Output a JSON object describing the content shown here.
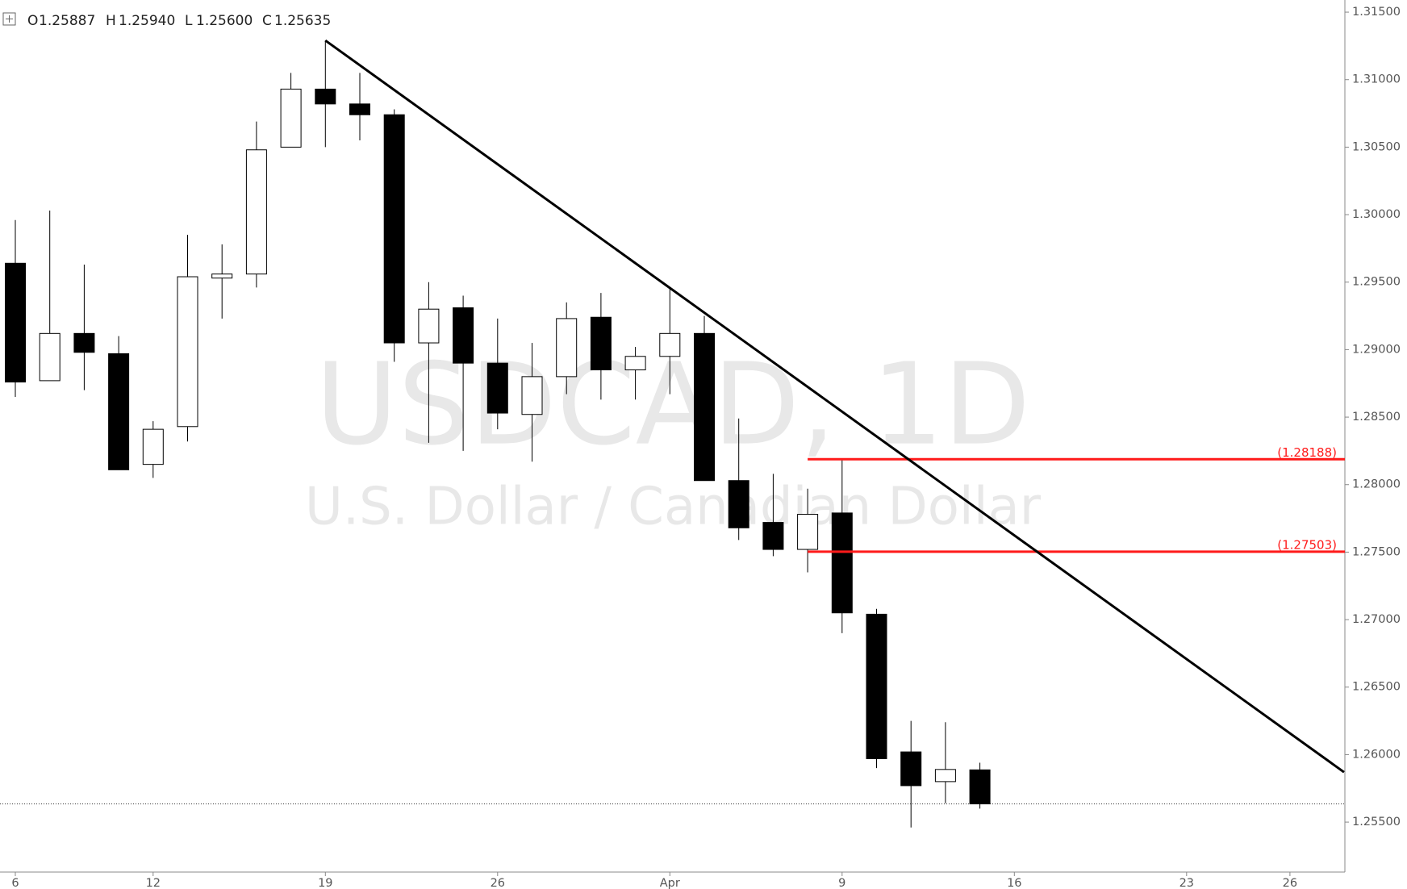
{
  "chart_data": {
    "type": "candlestick",
    "header": {
      "open_label": "O",
      "open": "1.25887",
      "high_label": "H",
      "high": "1.25940",
      "low_label": "L",
      "low": "1.25600",
      "close_label": "C",
      "close": "1.25635"
    },
    "watermark": {
      "title": "USDCAD, 1D",
      "subtitle": "U.S. Dollar / Canadian Dollar"
    },
    "categories": [
      "6",
      null,
      null,
      null,
      "12",
      null,
      null,
      null,
      null,
      "19",
      null,
      null,
      null,
      null,
      "26",
      null,
      null,
      null,
      null,
      "Apr",
      null,
      null,
      null,
      null,
      "9",
      null,
      null,
      null,
      null,
      "16",
      null,
      null,
      null,
      null,
      "23",
      null,
      null,
      "26",
      null
    ],
    "open": [
      1.2964,
      1.2877,
      1.2912,
      1.2897,
      1.2815,
      1.2843,
      1.2953,
      1.2956,
      1.305,
      1.3093,
      1.3082,
      1.3074,
      1.2905,
      1.2931,
      1.289,
      1.2852,
      1.288,
      1.2924,
      1.2885,
      1.2895,
      1.2912,
      1.2803,
      1.2772,
      1.2752,
      1.2779,
      1.2704,
      1.2602,
      1.258,
      1.25887,
      null,
      null,
      null,
      null,
      null,
      null,
      null,
      null,
      null,
      null
    ],
    "high": [
      1.2996,
      1.3003,
      1.2963,
      1.291,
      1.2847,
      1.2985,
      1.2978,
      1.3069,
      1.3105,
      1.3129,
      1.3105,
      1.3078,
      1.295,
      1.294,
      1.2923,
      1.2905,
      1.2935,
      1.2942,
      1.2902,
      1.2946,
      1.2925,
      1.2849,
      1.2808,
      1.2797,
      1.2819,
      1.2708,
      1.2625,
      1.2624,
      1.2594,
      null,
      null,
      null,
      null,
      null,
      null,
      null,
      null,
      null,
      null
    ],
    "low": [
      1.2865,
      1.2877,
      1.287,
      1.2811,
      1.2805,
      1.2832,
      1.2923,
      1.2946,
      1.305,
      1.305,
      1.3055,
      1.2891,
      1.2831,
      1.2825,
      1.2841,
      1.2817,
      1.2867,
      1.2863,
      1.2863,
      1.2867,
      1.2803,
      1.2759,
      1.2747,
      1.2735,
      1.269,
      1.259,
      1.2546,
      1.2564,
      1.256,
      null,
      null,
      null,
      null,
      null,
      null,
      null,
      null,
      null,
      null
    ],
    "close": [
      1.2876,
      1.2912,
      1.2898,
      1.2811,
      1.2841,
      1.2954,
      1.2956,
      1.3048,
      1.3093,
      1.3082,
      1.3074,
      1.2905,
      1.293,
      1.289,
      1.2853,
      1.288,
      1.2923,
      1.2885,
      1.2895,
      1.2912,
      1.2803,
      1.2768,
      1.2752,
      1.2778,
      1.2705,
      1.2597,
      1.2577,
      1.2589,
      1.25635,
      null,
      null,
      null,
      null,
      null,
      null,
      null,
      null,
      null,
      null
    ],
    "up_color": "#ffffff",
    "down_color": "#000000",
    "ylim": [
      1.2513,
      1.3159
    ],
    "yticks": [
      {
        "value": 1.255,
        "label": "1.25500"
      },
      {
        "value": 1.26,
        "label": "1.26000"
      },
      {
        "value": 1.265,
        "label": "1.26500"
      },
      {
        "value": 1.27,
        "label": "1.27000"
      },
      {
        "value": 1.275,
        "label": "1.27500"
      },
      {
        "value": 1.28,
        "label": "1.28000"
      },
      {
        "value": 1.285,
        "label": "1.28500"
      },
      {
        "value": 1.29,
        "label": "1.29000"
      },
      {
        "value": 1.295,
        "label": "1.29500"
      },
      {
        "value": 1.3,
        "label": "1.30000"
      },
      {
        "value": 1.305,
        "label": "1.30500"
      },
      {
        "value": 1.31,
        "label": "1.31000"
      },
      {
        "value": 1.315,
        "label": "1.31500"
      }
    ],
    "trend_line": {
      "x": [
        9,
        38.57
      ],
      "y": [
        1.3129,
        1.2587
      ],
      "color": "#000000"
    },
    "levels": [
      {
        "value": 1.28188,
        "label": "(1.28188)",
        "start": 23,
        "color": "#ff1a1a"
      },
      {
        "value": 1.27503,
        "label": "(1.27503)",
        "start": 23,
        "color": "#ff1a1a"
      }
    ],
    "last_price": 1.25635
  }
}
